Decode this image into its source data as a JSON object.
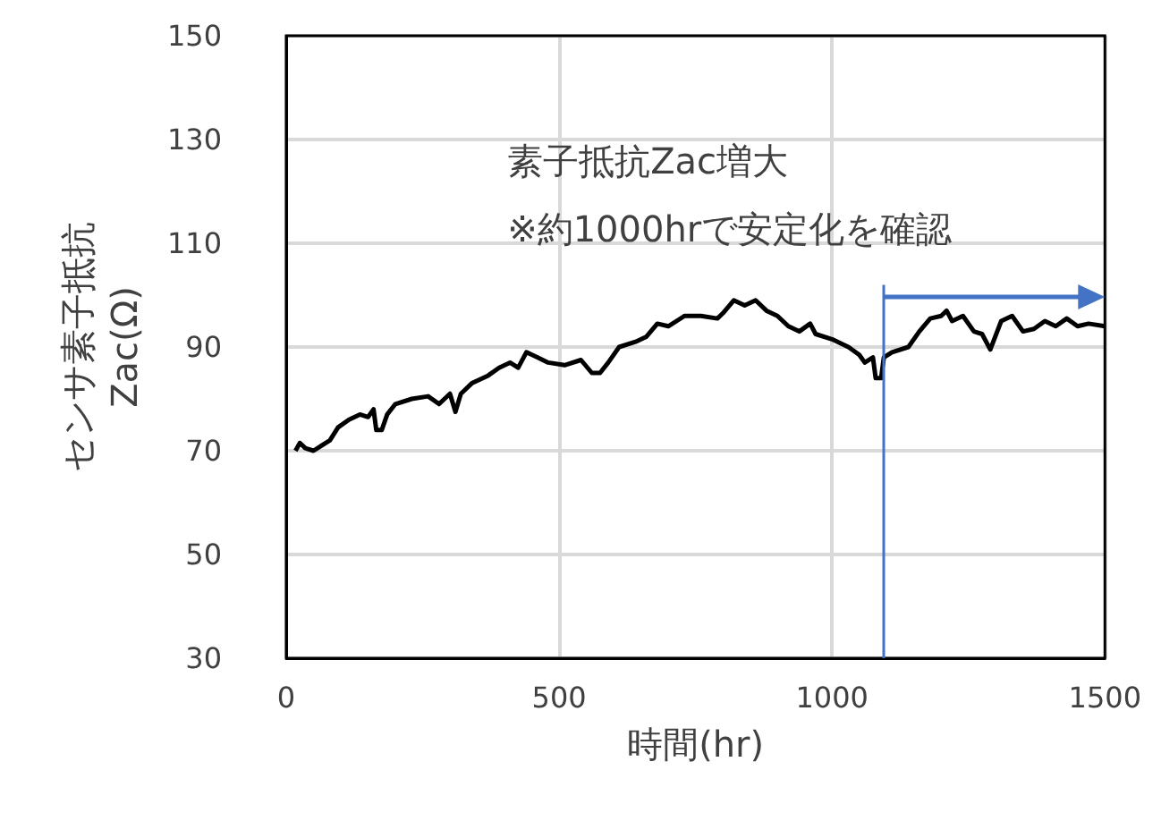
{
  "chart_data": {
    "type": "line",
    "xlabel": "時間(hr)",
    "ylabel": "センサ素子抵抗\nZac(Ω)",
    "xlim": [
      0,
      1500
    ],
    "xticks": [
      0,
      500,
      1000,
      1500
    ],
    "ylim": [
      30,
      150
    ],
    "yticks": [
      30,
      50,
      70,
      90,
      110,
      130,
      150
    ],
    "grid": true,
    "marker": "none",
    "line_style": "solid",
    "annotations": [
      "素子抵抗Zac増大",
      "※約1000hrで安定化を確認"
    ],
    "ref_lines": [
      {
        "axis": "x",
        "value": 1095,
        "color": "#4472c4"
      }
    ],
    "series": [
      {
        "color": "#000000",
        "x": [
          17,
          25,
          35,
          50,
          65,
          80,
          95,
          115,
          135,
          150,
          160,
          165,
          175,
          185,
          200,
          230,
          260,
          280,
          300,
          310,
          320,
          340,
          370,
          390,
          410,
          425,
          440,
          460,
          480,
          510,
          540,
          560,
          575,
          590,
          610,
          640,
          660,
          680,
          700,
          730,
          760,
          790,
          800,
          820,
          840,
          860,
          880,
          900,
          920,
          940,
          960,
          970,
          1000,
          1030,
          1050,
          1060,
          1075,
          1080,
          1090,
          1095,
          1110,
          1140,
          1160,
          1180,
          1200,
          1210,
          1220,
          1240,
          1260,
          1275,
          1290,
          1310,
          1330,
          1350,
          1370,
          1390,
          1410,
          1430,
          1450,
          1470,
          1500
        ],
        "values": [
          70,
          71.5,
          70.5,
          70,
          71,
          72,
          74.5,
          76,
          77,
          76.5,
          78,
          74,
          74,
          77,
          79,
          80,
          80.5,
          79,
          81,
          77.5,
          81,
          83,
          84.5,
          86,
          87,
          86,
          89,
          88,
          87,
          86.5,
          87.5,
          85,
          85,
          87,
          90,
          91,
          92,
          94.5,
          94,
          96,
          96,
          95.5,
          96.5,
          99,
          98,
          99,
          97,
          96,
          94,
          93,
          94.5,
          92.5,
          91.5,
          90,
          88.5,
          87,
          88,
          84,
          84,
          88,
          89,
          90,
          93,
          95.5,
          96,
          97,
          95,
          96,
          93,
          92.5,
          89.5,
          95,
          96,
          93,
          93.5,
          95,
          94,
          95.5,
          94,
          94.5,
          94
        ]
      }
    ]
  }
}
